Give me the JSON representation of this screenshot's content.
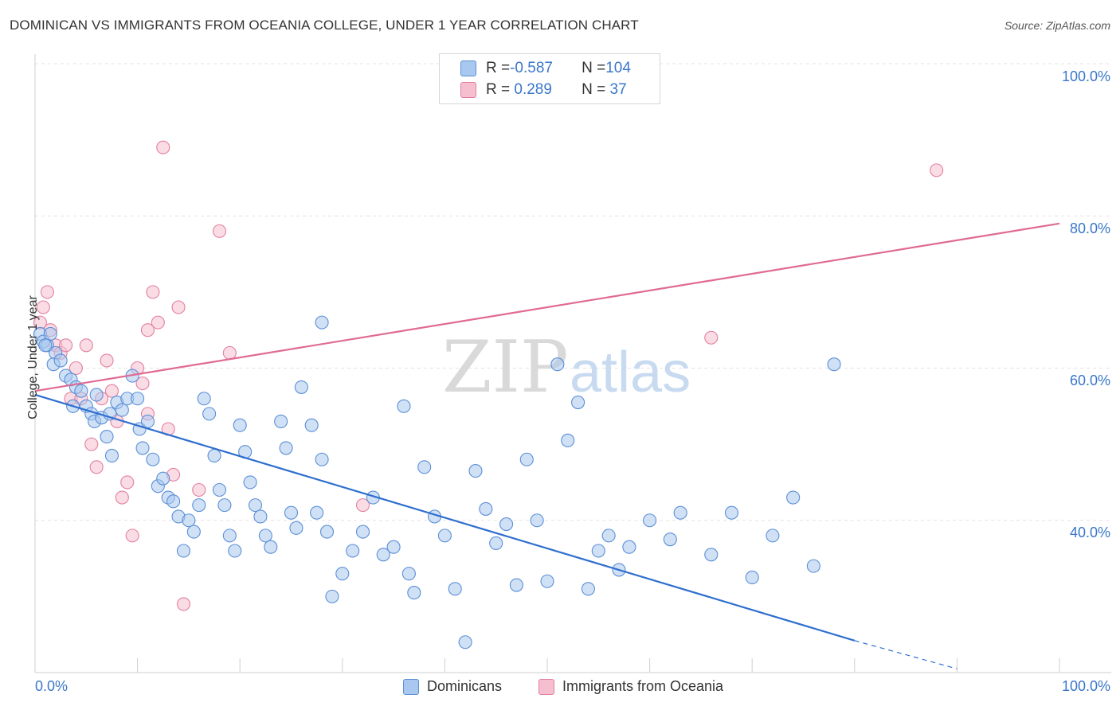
{
  "title": "DOMINICAN VS IMMIGRANTS FROM OCEANIA COLLEGE, UNDER 1 YEAR CORRELATION CHART",
  "source": "Source: ZipAtlas.com",
  "colors": {
    "blue_fill": "#a9c8ef",
    "blue_stroke": "#5b8fd6",
    "blue_line": "#2f6fcf",
    "pink_fill": "#f6bfd0",
    "pink_stroke": "#e27fa0",
    "pink_line": "#e06a93",
    "axis_label": "#3a77c9"
  },
  "legend": {
    "row1": {
      "r_label": "R = ",
      "r_value": "-0.587",
      "n_label": "N = ",
      "n_value": "104"
    },
    "row2": {
      "r_label": "R = ",
      "r_value": " 0.289",
      "n_label": "N = ",
      "n_value": " 37"
    }
  },
  "bottom_legend": {
    "series1": "Dominicans",
    "series2": "Immigrants from Oceania"
  },
  "chart_data": {
    "type": "scatter",
    "title": "DOMINICAN VS IMMIGRANTS FROM OCEANIA COLLEGE, UNDER 1 YEAR CORRELATION CHART",
    "xlabel": "",
    "ylabel": "College, Under 1 year",
    "xlim": [
      0,
      100
    ],
    "ylim": [
      20,
      100
    ],
    "x_tick_labels": [
      "0.0%",
      "100.0%"
    ],
    "y_tick_labels": [
      "100.0%",
      "80.0%",
      "60.0%",
      "40.0%"
    ],
    "y_ticks": [
      100,
      80,
      60,
      40
    ],
    "watermark": {
      "part1": "ZIP",
      "part2": "atlas"
    },
    "series": [
      {
        "name": "Dominicans",
        "color": "blue",
        "R": -0.587,
        "N": 104,
        "trend": {
          "x0": 0,
          "y0": 56.5,
          "x1": 80,
          "y1": 24.2,
          "dash_to_x": 90,
          "dash_to_y": 20.5
        },
        "points": [
          [
            0.5,
            64.5
          ],
          [
            0.8,
            63.5
          ],
          [
            1.2,
            63
          ],
          [
            1.5,
            64.5
          ],
          [
            2,
            62
          ],
          [
            1.8,
            60.5
          ],
          [
            2.5,
            61
          ],
          [
            3,
            59
          ],
          [
            3.5,
            58.5
          ],
          [
            4,
            57.5
          ],
          [
            3.7,
            55
          ],
          [
            4.5,
            57
          ],
          [
            5,
            55
          ],
          [
            5.5,
            54
          ],
          [
            5.8,
            53
          ],
          [
            6,
            56.5
          ],
          [
            6.5,
            53.5
          ],
          [
            7,
            51
          ],
          [
            7.3,
            54
          ],
          [
            7.5,
            48.5
          ],
          [
            8,
            55.5
          ],
          [
            8.5,
            54.5
          ],
          [
            9,
            56
          ],
          [
            9.5,
            59
          ],
          [
            10,
            56
          ],
          [
            10.2,
            52
          ],
          [
            10.5,
            49.5
          ],
          [
            11,
            53
          ],
          [
            11.5,
            48
          ],
          [
            12,
            44.5
          ],
          [
            12.5,
            45.5
          ],
          [
            13,
            43
          ],
          [
            13.5,
            42.5
          ],
          [
            14,
            40.5
          ],
          [
            14.5,
            36
          ],
          [
            15,
            40
          ],
          [
            15.5,
            38.5
          ],
          [
            16,
            42
          ],
          [
            16.5,
            56
          ],
          [
            17,
            54
          ],
          [
            17.5,
            48.5
          ],
          [
            18,
            44
          ],
          [
            18.5,
            42
          ],
          [
            19,
            38
          ],
          [
            19.5,
            36
          ],
          [
            20,
            52.5
          ],
          [
            20.5,
            49
          ],
          [
            21,
            45
          ],
          [
            21.5,
            42
          ],
          [
            22,
            40.5
          ],
          [
            22.5,
            38
          ],
          [
            23,
            36.5
          ],
          [
            24,
            53
          ],
          [
            24.5,
            49.5
          ],
          [
            25,
            41
          ],
          [
            25.5,
            39
          ],
          [
            26,
            57.5
          ],
          [
            27,
            52.5
          ],
          [
            27.5,
            41
          ],
          [
            28,
            48
          ],
          [
            28.5,
            38.5
          ],
          [
            29,
            30
          ],
          [
            30,
            33
          ],
          [
            31,
            36
          ],
          [
            32,
            38.5
          ],
          [
            33,
            43
          ],
          [
            34,
            35.5
          ],
          [
            35,
            36.5
          ],
          [
            36,
            55
          ],
          [
            36.5,
            33
          ],
          [
            37,
            30.5
          ],
          [
            38,
            47
          ],
          [
            39,
            40.5
          ],
          [
            40,
            38
          ],
          [
            41,
            31
          ],
          [
            42,
            24
          ],
          [
            43,
            46.5
          ],
          [
            44,
            41.5
          ],
          [
            45,
            37
          ],
          [
            46,
            39.5
          ],
          [
            47,
            31.5
          ],
          [
            48,
            48
          ],
          [
            49,
            40
          ],
          [
            50,
            32
          ],
          [
            51,
            60.5
          ],
          [
            52,
            50.5
          ],
          [
            53,
            55.5
          ],
          [
            54,
            31
          ],
          [
            55,
            36
          ],
          [
            56,
            38
          ],
          [
            57,
            33.5
          ],
          [
            58,
            36.5
          ],
          [
            60,
            40
          ],
          [
            62,
            37.5
          ],
          [
            63,
            41
          ],
          [
            66,
            35.5
          ],
          [
            68,
            41
          ],
          [
            70,
            32.5
          ],
          [
            72,
            38
          ],
          [
            74,
            43
          ],
          [
            76,
            34
          ],
          [
            78,
            60.5
          ],
          [
            28,
            66
          ],
          [
            1,
            63
          ]
        ]
      },
      {
        "name": "Immigrants from Oceania",
        "color": "pink",
        "R": 0.289,
        "N": 37,
        "trend": {
          "x0": 0,
          "y0": 57,
          "x1": 100,
          "y1": 79
        },
        "points": [
          [
            0.5,
            66
          ],
          [
            0.8,
            68
          ],
          [
            1.2,
            70
          ],
          [
            1.5,
            65
          ],
          [
            2,
            63
          ],
          [
            2.5,
            62
          ],
          [
            3,
            63
          ],
          [
            3.5,
            56
          ],
          [
            4,
            60
          ],
          [
            4.5,
            56
          ],
          [
            5,
            63
          ],
          [
            5.5,
            50
          ],
          [
            6,
            47
          ],
          [
            6.5,
            56
          ],
          [
            7,
            61
          ],
          [
            7.5,
            57
          ],
          [
            8,
            53
          ],
          [
            8.5,
            43
          ],
          [
            9,
            45
          ],
          [
            9.5,
            38
          ],
          [
            10,
            60
          ],
          [
            10.5,
            58
          ],
          [
            11,
            54
          ],
          [
            11.5,
            70
          ],
          [
            12,
            66
          ],
          [
            12.5,
            89
          ],
          [
            13,
            52
          ],
          [
            13.5,
            46
          ],
          [
            14,
            68
          ],
          [
            14.5,
            29
          ],
          [
            16,
            44
          ],
          [
            18,
            78
          ],
          [
            19,
            62
          ],
          [
            32,
            42
          ],
          [
            66,
            64
          ],
          [
            88,
            86
          ],
          [
            11,
            65
          ]
        ]
      }
    ]
  }
}
